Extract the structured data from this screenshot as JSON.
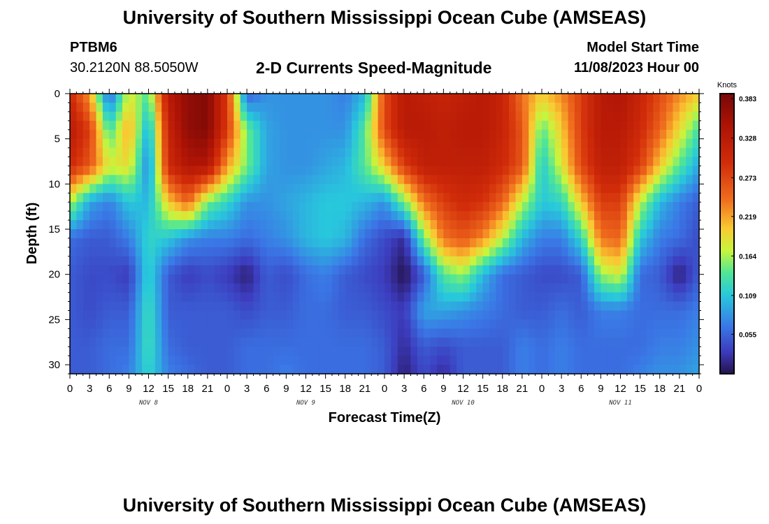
{
  "header": {
    "title": "University of Southern Mississippi Ocean Cube (AMSEAS)",
    "station": "PTBM6",
    "coordinates": "30.2120N  88.5050W",
    "subtitle": "2-D Currents Speed-Magnitude",
    "model_start_label": "Model Start Time",
    "model_start_value": "11/08/2023 Hour 00"
  },
  "footer": {
    "title": "University of Southern Mississippi Ocean Cube (AMSEAS)"
  },
  "chart_data": {
    "type": "heatmap",
    "xlabel": "Forecast Time(Z)",
    "ylabel": "Depth (ft)",
    "x_ticks": [
      "0",
      "3",
      "6",
      "9",
      "12",
      "15",
      "18",
      "21",
      "0",
      "3",
      "6",
      "9",
      "12",
      "15",
      "18",
      "21",
      "0",
      "3",
      "6",
      "9",
      "12",
      "15",
      "18",
      "21",
      "0",
      "3",
      "6",
      "9",
      "12",
      "15",
      "18",
      "21",
      "0"
    ],
    "x_range_hours": [
      0,
      96
    ],
    "day_labels": [
      {
        "label": "NOV 8",
        "hour": 12
      },
      {
        "label": "NOV 9",
        "hour": 36
      },
      {
        "label": "NOV 10",
        "hour": 60
      },
      {
        "label": "NOV 11",
        "hour": 84
      }
    ],
    "y_ticks": [
      0,
      5,
      10,
      15,
      20,
      25,
      30
    ],
    "ylim": [
      0,
      31
    ],
    "y_inverted": true,
    "colorbar": {
      "unit": "Knots",
      "ticks": [
        "0.383",
        "0.328",
        "0.273",
        "0.219",
        "0.164",
        "0.109",
        "0.055"
      ],
      "vmin": 0,
      "vmax": 0.39
    },
    "depths_ft": [
      0,
      4,
      8,
      12,
      16,
      20,
      24,
      28,
      31
    ],
    "hours": [
      0,
      3,
      6,
      9,
      12,
      15,
      18,
      21,
      24,
      27,
      30,
      33,
      36,
      39,
      42,
      45,
      48,
      51,
      54,
      57,
      60,
      63,
      66,
      69,
      72,
      75,
      78,
      81,
      84,
      87,
      90,
      93,
      96
    ],
    "speed_knots": [
      [
        0.3,
        0.22,
        0.05,
        0.18,
        0.14,
        0.33,
        0.37,
        0.38,
        0.28,
        0.05,
        0.08,
        0.08,
        0.08,
        0.08,
        0.07,
        0.1,
        0.27,
        0.33,
        0.32,
        0.31,
        0.32,
        0.33,
        0.31,
        0.24,
        0.2,
        0.23,
        0.28,
        0.33,
        0.34,
        0.31,
        0.27,
        0.23,
        0.2
      ],
      [
        0.33,
        0.28,
        0.13,
        0.22,
        0.09,
        0.31,
        0.37,
        0.38,
        0.28,
        0.15,
        0.09,
        0.08,
        0.08,
        0.08,
        0.08,
        0.14,
        0.27,
        0.33,
        0.33,
        0.32,
        0.33,
        0.33,
        0.31,
        0.26,
        0.14,
        0.2,
        0.28,
        0.33,
        0.33,
        0.3,
        0.25,
        0.19,
        0.13
      ],
      [
        0.3,
        0.26,
        0.18,
        0.19,
        0.07,
        0.3,
        0.34,
        0.34,
        0.22,
        0.15,
        0.09,
        0.08,
        0.08,
        0.09,
        0.1,
        0.14,
        0.2,
        0.28,
        0.32,
        0.32,
        0.32,
        0.32,
        0.3,
        0.26,
        0.11,
        0.18,
        0.27,
        0.32,
        0.32,
        0.28,
        0.2,
        0.14,
        0.09
      ],
      [
        0.17,
        0.09,
        0.07,
        0.11,
        0.1,
        0.2,
        0.25,
        0.15,
        0.12,
        0.08,
        0.08,
        0.09,
        0.1,
        0.11,
        0.11,
        0.1,
        0.08,
        0.15,
        0.24,
        0.28,
        0.3,
        0.29,
        0.25,
        0.17,
        0.11,
        0.12,
        0.2,
        0.28,
        0.28,
        0.17,
        0.1,
        0.07,
        0.05
      ],
      [
        0.06,
        0.05,
        0.05,
        0.07,
        0.12,
        0.11,
        0.08,
        0.07,
        0.07,
        0.06,
        0.07,
        0.08,
        0.1,
        0.11,
        0.1,
        0.06,
        0.04,
        0.02,
        0.15,
        0.24,
        0.26,
        0.23,
        0.17,
        0.1,
        0.07,
        0.07,
        0.12,
        0.24,
        0.25,
        0.11,
        0.07,
        0.06,
        0.04
      ],
      [
        0.05,
        0.04,
        0.04,
        0.03,
        0.12,
        0.05,
        0.03,
        0.04,
        0.03,
        0.01,
        0.05,
        0.04,
        0.06,
        0.07,
        0.05,
        0.04,
        0.03,
        0.0,
        0.05,
        0.14,
        0.16,
        0.1,
        0.06,
        0.05,
        0.04,
        0.04,
        0.05,
        0.16,
        0.18,
        0.06,
        0.05,
        0.01,
        0.05
      ],
      [
        0.05,
        0.04,
        0.05,
        0.05,
        0.13,
        0.05,
        0.05,
        0.05,
        0.05,
        0.04,
        0.05,
        0.05,
        0.06,
        0.06,
        0.05,
        0.05,
        0.04,
        0.03,
        0.09,
        0.09,
        0.08,
        0.07,
        0.06,
        0.05,
        0.05,
        0.06,
        0.05,
        0.07,
        0.07,
        0.06,
        0.06,
        0.06,
        0.07
      ],
      [
        0.05,
        0.05,
        0.06,
        0.06,
        0.13,
        0.06,
        0.05,
        0.05,
        0.05,
        0.06,
        0.06,
        0.06,
        0.06,
        0.06,
        0.06,
        0.06,
        0.05,
        0.02,
        0.05,
        0.04,
        0.05,
        0.05,
        0.05,
        0.07,
        0.06,
        0.07,
        0.06,
        0.06,
        0.06,
        0.06,
        0.07,
        0.07,
        0.08
      ],
      [
        0.05,
        0.05,
        0.06,
        0.07,
        0.12,
        0.07,
        0.06,
        0.05,
        0.05,
        0.06,
        0.06,
        0.07,
        0.06,
        0.06,
        0.06,
        0.06,
        0.05,
        0.01,
        0.04,
        0.02,
        0.05,
        0.05,
        0.05,
        0.07,
        0.06,
        0.07,
        0.06,
        0.06,
        0.06,
        0.07,
        0.08,
        0.08,
        0.09
      ]
    ]
  }
}
